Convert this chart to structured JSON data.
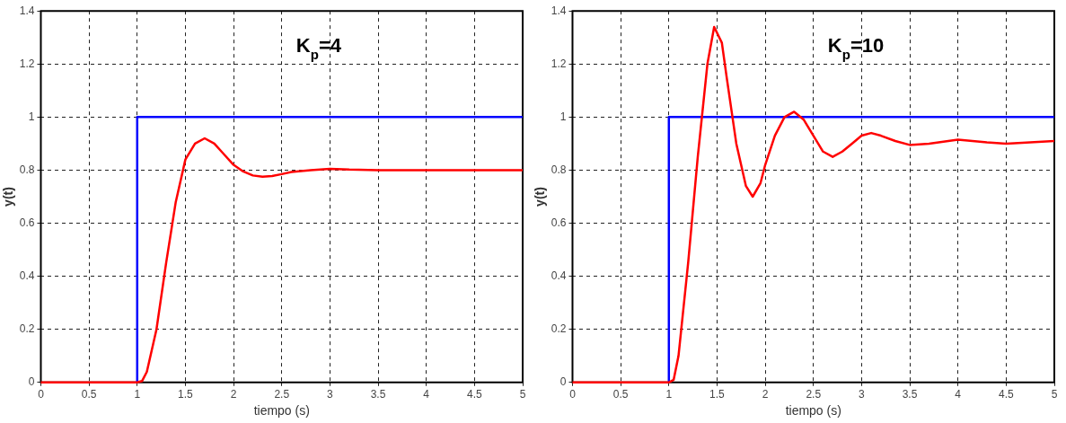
{
  "chart_data": [
    {
      "type": "line",
      "xlabel": "tiempo (s)",
      "ylabel": "y(t)",
      "annotations": [
        "K$_{p}$=4"
      ],
      "xlim": [
        0,
        5
      ],
      "xticks": [
        0,
        0.5,
        1,
        1.5,
        2,
        2.5,
        3,
        3.5,
        4,
        4.5,
        5
      ],
      "ylim": [
        0,
        1.4
      ],
      "yticks": [
        0,
        0.2,
        0.4,
        0.6,
        0.8,
        1,
        1.2,
        1.4
      ],
      "grid": true,
      "legend": false,
      "marker": "none",
      "series": [
        {
          "color": "#0000ff",
          "x": [
            1,
            1,
            5
          ],
          "values": [
            0,
            1,
            1
          ]
        },
        {
          "color": "#ff0000",
          "x": [
            0,
            1,
            1.05,
            1.1,
            1.2,
            1.3,
            1.4,
            1.5,
            1.6,
            1.7,
            1.8,
            1.9,
            2,
            2.1,
            2.2,
            2.3,
            2.4,
            2.5,
            2.6,
            2.8,
            3,
            3.2,
            3.5,
            4,
            5
          ],
          "values": [
            0,
            0,
            0.005,
            0.04,
            0.2,
            0.45,
            0.68,
            0.84,
            0.9,
            0.92,
            0.9,
            0.86,
            0.82,
            0.795,
            0.78,
            0.775,
            0.778,
            0.785,
            0.793,
            0.8,
            0.805,
            0.802,
            0.8,
            0.8,
            0.8
          ]
        }
      ]
    },
    {
      "type": "line",
      "xlabel": "tiempo (s)",
      "ylabel": "y(t)",
      "annotations": [
        "K$_{p}$=10"
      ],
      "xlim": [
        0,
        5
      ],
      "xticks": [
        0,
        0.5,
        1,
        1.5,
        2,
        2.5,
        3,
        3.5,
        4,
        4.5,
        5
      ],
      "ylim": [
        0,
        1.4
      ],
      "yticks": [
        0,
        0.2,
        0.4,
        0.6,
        0.8,
        1,
        1.2,
        1.4
      ],
      "grid": true,
      "legend": false,
      "marker": "none",
      "series": [
        {
          "color": "#0000ff",
          "x": [
            1,
            1,
            5
          ],
          "values": [
            0,
            1,
            1
          ]
        },
        {
          "color": "#ff0000",
          "x": [
            0,
            1,
            1.05,
            1.1,
            1.2,
            1.3,
            1.4,
            1.47,
            1.55,
            1.6,
            1.7,
            1.8,
            1.87,
            1.95,
            2,
            2.1,
            2.2,
            2.3,
            2.4,
            2.5,
            2.6,
            2.7,
            2.8,
            2.9,
            3,
            3.1,
            3.2,
            3.35,
            3.5,
            3.7,
            4,
            4.3,
            4.5,
            5
          ],
          "values": [
            0,
            0,
            0.01,
            0.1,
            0.45,
            0.85,
            1.2,
            1.34,
            1.28,
            1.15,
            0.9,
            0.74,
            0.7,
            0.75,
            0.82,
            0.93,
            1,
            1.02,
            0.99,
            0.93,
            0.87,
            0.85,
            0.87,
            0.9,
            0.93,
            0.94,
            0.93,
            0.91,
            0.895,
            0.9,
            0.915,
            0.905,
            0.9,
            0.91
          ]
        }
      ]
    }
  ]
}
